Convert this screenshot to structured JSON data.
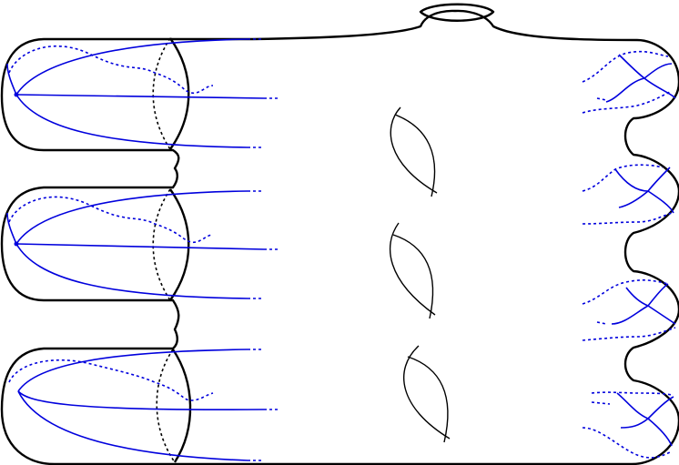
{
  "figure": {
    "kind": "surface-diagram",
    "colors": {
      "outline": "#000000",
      "curves": "#0000dd",
      "background": "#ffffff"
    },
    "left_handles": 3,
    "interior_holes": 3,
    "right_bumps": 4,
    "top_cap": 1,
    "blue_trees_left": 3,
    "blue_trees_right": 4
  }
}
